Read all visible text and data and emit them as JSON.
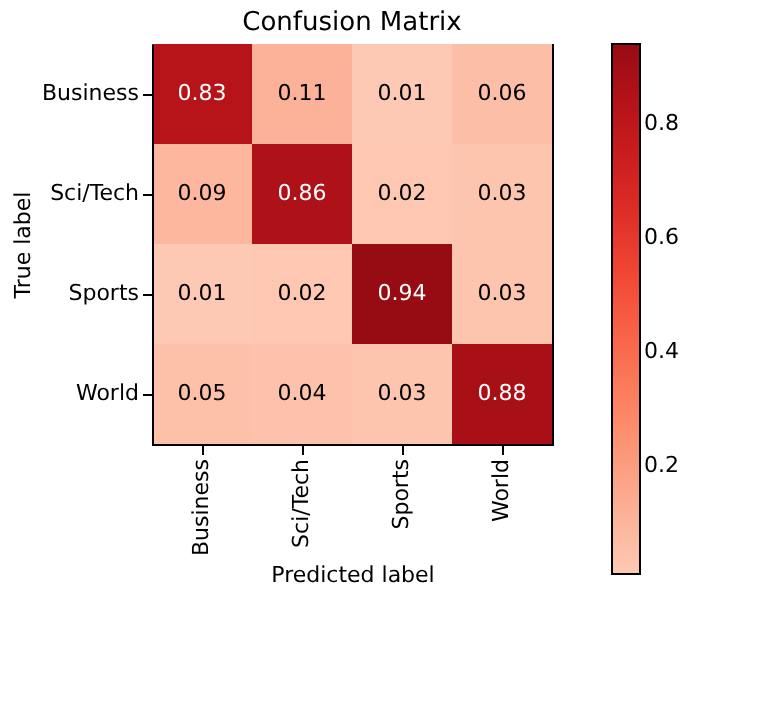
{
  "chart_data": {
    "type": "heatmap",
    "title": "Confusion Matrix",
    "xlabel": "Predicted label",
    "ylabel": "True label",
    "categories": [
      "Business",
      "Sci/Tech",
      "Sports",
      "World"
    ],
    "y_categories": [
      "Business",
      "Sci/Tech",
      "Sports",
      "World"
    ],
    "cells": [
      [
        0.83,
        0.11,
        0.01,
        0.06
      ],
      [
        0.09,
        0.86,
        0.02,
        0.03
      ],
      [
        0.01,
        0.02,
        0.94,
        0.03
      ],
      [
        0.05,
        0.04,
        0.03,
        0.88
      ]
    ],
    "data_labels": true,
    "clim": [
      0.01,
      0.94
    ],
    "cticks": [
      0.2,
      0.4,
      0.6,
      0.8
    ]
  }
}
